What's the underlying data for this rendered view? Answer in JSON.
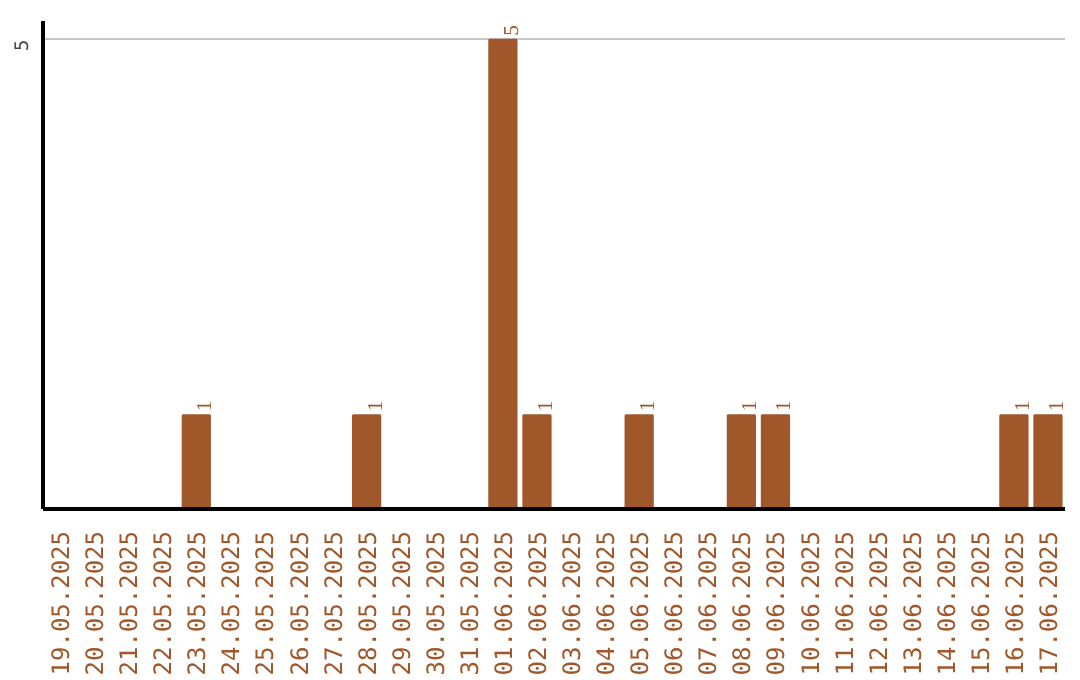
{
  "chart_data": {
    "type": "bar",
    "categories": [
      "19.05.2025",
      "20.05.2025",
      "21.05.2025",
      "22.05.2025",
      "23.05.2025",
      "24.05.2025",
      "25.05.2025",
      "26.05.2025",
      "27.05.2025",
      "28.05.2025",
      "29.05.2025",
      "30.05.2025",
      "31.05.2025",
      "01.06.2025",
      "02.06.2025",
      "03.06.2025",
      "04.06.2025",
      "05.06.2025",
      "06.06.2025",
      "07.06.2025",
      "08.06.2025",
      "09.06.2025",
      "10.06.2025",
      "11.06.2025",
      "12.06.2025",
      "13.06.2025",
      "14.06.2025",
      "15.06.2025",
      "16.06.2025",
      "17.06.2025"
    ],
    "values": [
      0,
      0,
      0,
      0,
      1,
      0,
      0,
      0,
      0,
      1,
      0,
      0,
      0,
      5,
      1,
      0,
      0,
      1,
      0,
      0,
      1,
      1,
      0,
      0,
      0,
      0,
      0,
      0,
      1,
      1
    ],
    "value_labels": [
      null,
      null,
      null,
      null,
      "1",
      null,
      null,
      null,
      null,
      "1",
      null,
      null,
      null,
      "5",
      "1",
      null,
      null,
      "1",
      null,
      null,
      "1",
      "1",
      null,
      null,
      null,
      null,
      null,
      null,
      "1",
      "1"
    ],
    "color": "#a0572a",
    "ylim": [
      0,
      5.2
    ],
    "yticks": [
      5
    ],
    "grid": "y"
  }
}
